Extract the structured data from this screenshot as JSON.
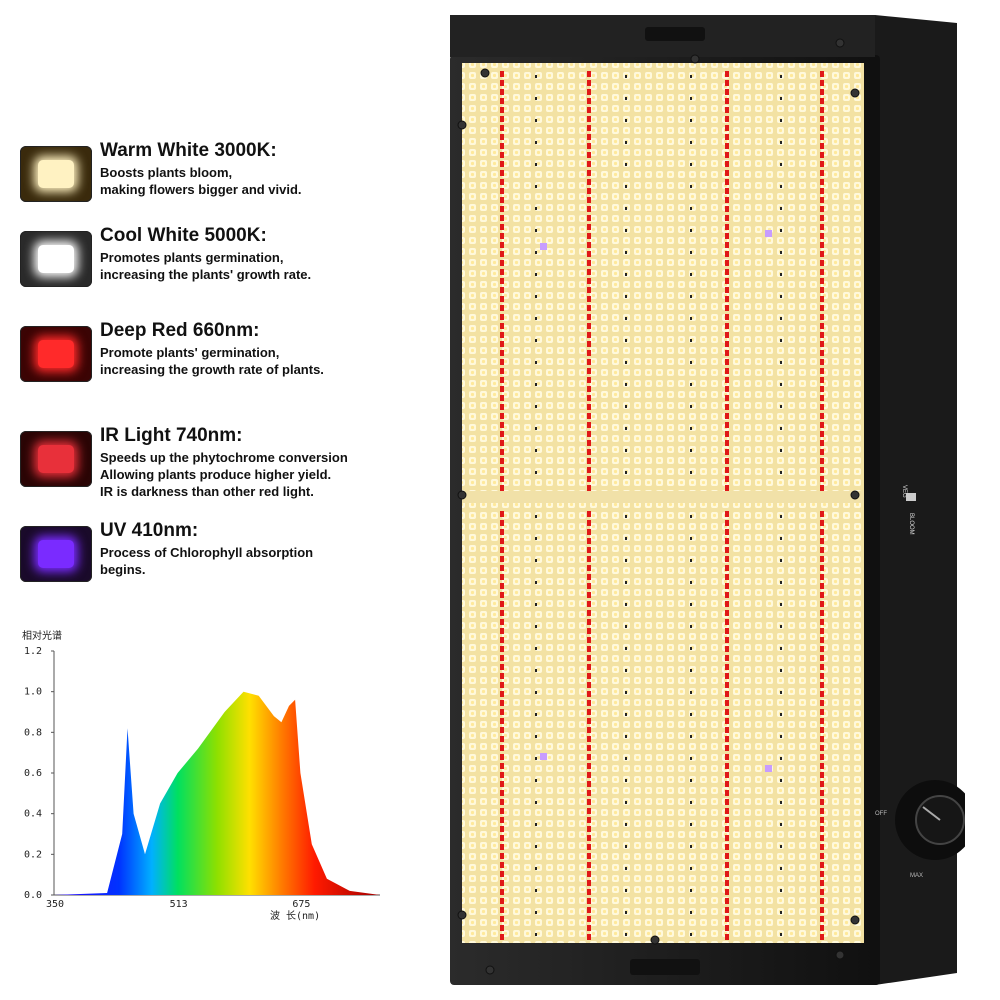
{
  "legend": [
    {
      "title": "Warm White 3000K:",
      "desc": "Boosts plants bloom,\nmaking flowers bigger and vivid.",
      "colors": {
        "bg": "#3a2a0c",
        "core": "#fff2c2"
      }
    },
    {
      "title": "Cool White 5000K:",
      "desc": "Promotes plants germination,\nincreasing the plants' growth rate.",
      "colors": {
        "bg": "#2a2a2a",
        "core": "#ffffff"
      }
    },
    {
      "title": "Deep Red 660nm:",
      "desc": "Promote plants' germination,\nincreasing the growth rate of plants.",
      "colors": {
        "bg": "#3b0404",
        "core": "#ff2a2a"
      }
    },
    {
      "title": "IR Light 740nm:",
      "desc": "Speeds up the phytochrome conversion\nAllowing plants produce higher yield.\nIR is darkness than other red light.",
      "colors": {
        "bg": "#2a0505",
        "core": "#e8303a"
      }
    },
    {
      "title": "UV 410nm:",
      "desc": "Process of Chlorophyll absorption\nbegins.",
      "colors": {
        "bg": "#1a0a2a",
        "core": "#7a2bff"
      }
    }
  ],
  "spectrum": {
    "ylabel": "相对光谱",
    "yticks": [
      "0.0",
      "0.2",
      "0.4",
      "0.6",
      "0.8",
      "1.0",
      "1.2"
    ],
    "xticks": [
      "350",
      "513",
      "675"
    ],
    "xlabel": "波 长(nm)",
    "chart_data": {
      "type": "area",
      "x": [
        350,
        420,
        440,
        447,
        455,
        470,
        490,
        513,
        540,
        575,
        600,
        620,
        640,
        650,
        660,
        668,
        675,
        690,
        710,
        740,
        780
      ],
      "values": [
        0,
        0.01,
        0.3,
        0.82,
        0.4,
        0.2,
        0.45,
        0.6,
        0.72,
        0.9,
        1.0,
        0.98,
        0.88,
        0.85,
        0.93,
        0.96,
        0.6,
        0.25,
        0.08,
        0.02,
        0
      ],
      "xlim": [
        350,
        780
      ],
      "ylim": [
        0,
        1.2
      ]
    }
  },
  "panel": {
    "switch_top": "VEG",
    "switch_bottom": "BLOOM",
    "dimmer_label_left": "OFF",
    "dimmer_label_right": "MAX"
  }
}
